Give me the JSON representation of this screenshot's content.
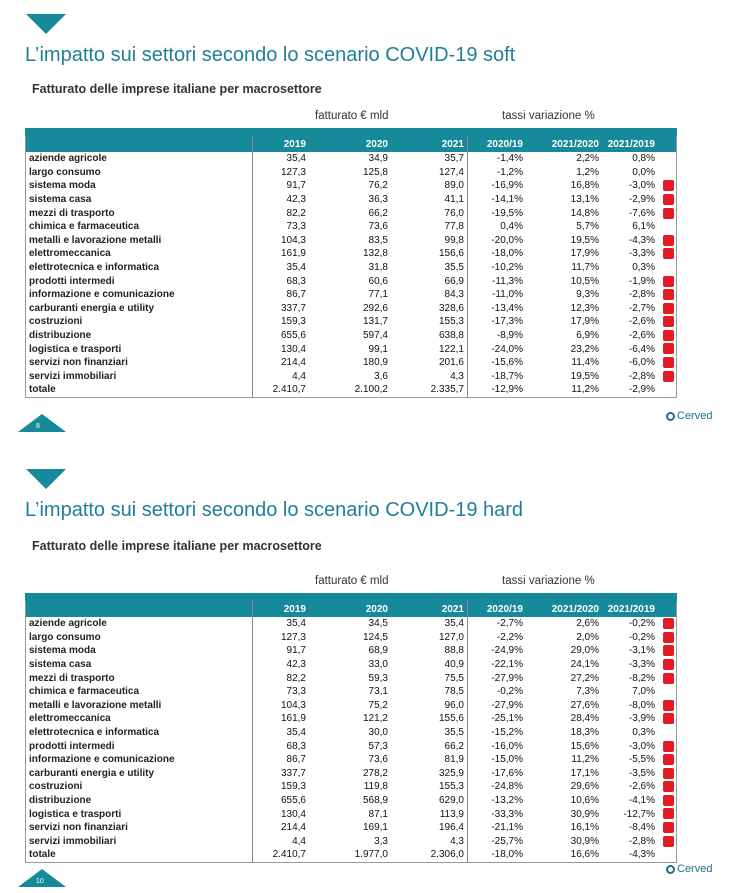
{
  "slides": [
    {
      "page": "8",
      "title": "L’impatto sui settori secondo lo scenario COVID-19 soft",
      "subtitle": "Fatturato delle imprese italiane per macrosettore",
      "group_headers": [
        "fatturato € mld",
        "tassi variazione %"
      ],
      "columns": [
        "2019",
        "2020",
        "2021",
        "2020/19",
        "2021/2020",
        "2021/2019"
      ],
      "logo": "Cerved",
      "rows": [
        [
          "aziende agricole",
          "35,4",
          "34,9",
          "35,7",
          "-1,4%",
          "2,2%",
          "0,8%"
        ],
        [
          "largo consumo",
          "127,3",
          "125,8",
          "127,4",
          "-1,2%",
          "1,2%",
          "0,0%"
        ],
        [
          "sistema moda",
          "91,7",
          "76,2",
          "89,0",
          "-16,9%",
          "16,8%",
          "-3,0%"
        ],
        [
          "sistema casa",
          "42,3",
          "36,3",
          "41,1",
          "-14,1%",
          "13,1%",
          "-2,9%"
        ],
        [
          "mezzi di trasporto",
          "82,2",
          "66,2",
          "76,0",
          "-19,5%",
          "14,8%",
          "-7,6%"
        ],
        [
          "chimica e farmaceutica",
          "73,3",
          "73,6",
          "77,8",
          "0,4%",
          "5,7%",
          "6,1%"
        ],
        [
          "metalli e lavorazione metalli",
          "104,3",
          "83,5",
          "99,8",
          "-20,0%",
          "19,5%",
          "-4,3%"
        ],
        [
          "elettromeccanica",
          "161,9",
          "132,8",
          "156,6",
          "-18,0%",
          "17,9%",
          "-3,3%"
        ],
        [
          "elettrotecnica e informatica",
          "35,4",
          "31,8",
          "35,5",
          "-10,2%",
          "11,7%",
          "0,3%"
        ],
        [
          "prodotti intermedi",
          "68,3",
          "60,6",
          "66,9",
          "-11,3%",
          "10,5%",
          "-1,9%"
        ],
        [
          "informazione e comunicazione",
          "86,7",
          "77,1",
          "84,3",
          "-11,0%",
          "9,3%",
          "-2,8%"
        ],
        [
          "carburanti energia e utility",
          "337,7",
          "292,6",
          "328,6",
          "-13,4%",
          "12,3%",
          "-2,7%"
        ],
        [
          "costruzioni",
          "159,3",
          "131,7",
          "155,3",
          "-17,3%",
          "17,9%",
          "-2,6%"
        ],
        [
          "distribuzione",
          "655,6",
          "597,4",
          "638,8",
          "-8,9%",
          "6,9%",
          "-2,6%"
        ],
        [
          "logistica e trasporti",
          "130,4",
          "99,1",
          "122,1",
          "-24,0%",
          "23,2%",
          "-6,4%"
        ],
        [
          "servizi non finanziari",
          "214,4",
          "180,9",
          "201,6",
          "-15,6%",
          "11,4%",
          "-6,0%"
        ],
        [
          "servizi immobiliari",
          "4,4",
          "3,6",
          "4,3",
          "-18,7%",
          "19,5%",
          "-2,8%"
        ],
        [
          "totale",
          "2.410,7",
          "2.100,2",
          "2.335,7",
          "-12,9%",
          "11,2%",
          "-2,9%"
        ]
      ]
    },
    {
      "page": "10",
      "title": "L’impatto sui settori secondo lo scenario COVID-19 hard",
      "subtitle": "Fatturato delle imprese italiane per macrosettore",
      "group_headers": [
        "fatturato € mld",
        "tassi variazione %"
      ],
      "columns": [
        "2019",
        "2020",
        "2021",
        "2020/19",
        "2021/2020",
        "2021/2019"
      ],
      "logo": "Cerved",
      "rows": [
        [
          "aziende agricole",
          "35,4",
          "34,5",
          "35,4",
          "-2,7%",
          "2,6%",
          "-0,2%"
        ],
        [
          "largo consumo",
          "127,3",
          "124,5",
          "127,0",
          "-2,2%",
          "2,0%",
          "-0,2%"
        ],
        [
          "sistema moda",
          "91,7",
          "68,9",
          "88,8",
          "-24,9%",
          "29,0%",
          "-3,1%"
        ],
        [
          "sistema casa",
          "42,3",
          "33,0",
          "40,9",
          "-22,1%",
          "24,1%",
          "-3,3%"
        ],
        [
          "mezzi di trasporto",
          "82,2",
          "59,3",
          "75,5",
          "-27,9%",
          "27,2%",
          "-8,2%"
        ],
        [
          "chimica e farmaceutica",
          "73,3",
          "73,1",
          "78,5",
          "-0,2%",
          "7,3%",
          "7,0%"
        ],
        [
          "metalli e lavorazione metalli",
          "104,3",
          "75,2",
          "96,0",
          "-27,9%",
          "27,6%",
          "-8,0%"
        ],
        [
          "elettromeccanica",
          "161,9",
          "121,2",
          "155,6",
          "-25,1%",
          "28,4%",
          "-3,9%"
        ],
        [
          "elettrotecnica e informatica",
          "35,4",
          "30,0",
          "35,5",
          "-15,2%",
          "18,3%",
          "0,3%"
        ],
        [
          "prodotti intermedi",
          "68,3",
          "57,3",
          "66,2",
          "-16,0%",
          "15,6%",
          "-3,0%"
        ],
        [
          "informazione e comunicazione",
          "86,7",
          "73,6",
          "81,9",
          "-15,0%",
          "11,2%",
          "-5,5%"
        ],
        [
          "carburanti energia e utility",
          "337,7",
          "278,2",
          "325,9",
          "-17,6%",
          "17,1%",
          "-3,5%"
        ],
        [
          "costruzioni",
          "159,3",
          "119,8",
          "155,3",
          "-24,8%",
          "29,6%",
          "-2,6%"
        ],
        [
          "distribuzione",
          "655,6",
          "568,9",
          "629,0",
          "-13,2%",
          "10,6%",
          "-4,1%"
        ],
        [
          "logistica e trasporti",
          "130,4",
          "87,1",
          "113,9",
          "-33,3%",
          "30,9%",
          "-12,7%"
        ],
        [
          "servizi non finanziari",
          "214,4",
          "169,1",
          "196,4",
          "-21,1%",
          "16,1%",
          "-8,4%"
        ],
        [
          "servizi immobiliari",
          "4,4",
          "3,3",
          "4,3",
          "-25,7%",
          "30,9%",
          "-2,8%"
        ],
        [
          "totale",
          "2.410,7",
          "1.977,0",
          "2.306,0",
          "-18,0%",
          "16,6%",
          "-4,3%"
        ]
      ]
    }
  ]
}
